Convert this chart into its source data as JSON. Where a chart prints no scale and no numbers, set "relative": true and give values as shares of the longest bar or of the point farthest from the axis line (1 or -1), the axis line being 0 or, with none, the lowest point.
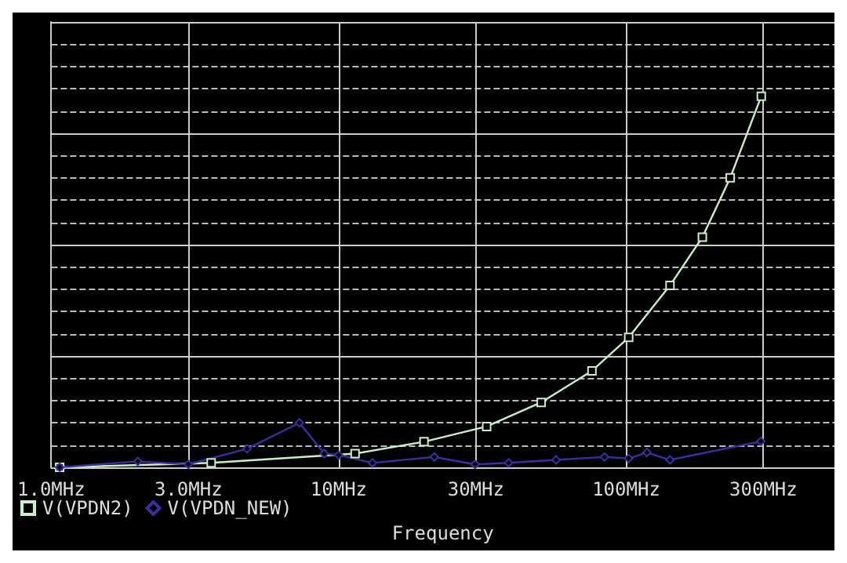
{
  "chart_data": {
    "type": "line",
    "relative": true,
    "log": "x",
    "xlabel": "Frequency",
    "xlim": [
      1,
      530
    ],
    "xticks": [
      {
        "value": 1,
        "label": "1.0MHz"
      },
      {
        "value": 3,
        "label": "3.0MHz"
      },
      {
        "value": 10,
        "label": "10MHz"
      },
      {
        "value": 30,
        "label": "30MHz"
      },
      {
        "value": 100,
        "label": "100MHz"
      },
      {
        "value": 300,
        "label": "300MHz"
      }
    ],
    "grid": true,
    "legend": "bottom left",
    "line_style": "solid",
    "series": [
      {
        "name": "V(VPDN2)",
        "color": "#c8f0c8",
        "marker": "square",
        "x": [
          1.07,
          3.6,
          11.4,
          19.8,
          32.7,
          50.6,
          76,
          102,
          142,
          184,
          230,
          295
        ],
        "values": [
          0,
          0.012,
          0.037,
          0.069,
          0.11,
          0.175,
          0.26,
          0.35,
          0.49,
          0.62,
          0.78,
          1
        ]
      },
      {
        "name": "V(VPDN_NEW)",
        "color": "#3a2fa0",
        "marker": "diamond",
        "x": [
          1.07,
          2,
          3,
          4.8,
          7.3,
          8.9,
          10,
          13.1,
          21.5,
          29.8,
          39,
          57,
          84,
          102,
          118,
          142,
          294
        ],
        "values": [
          0,
          0.016,
          0.008,
          0.05,
          0.12,
          0.037,
          0.033,
          0.012,
          0.028,
          0.008,
          0.012,
          0.02,
          0.028,
          0.024,
          0.04,
          0.02,
          0.07
        ]
      }
    ]
  }
}
